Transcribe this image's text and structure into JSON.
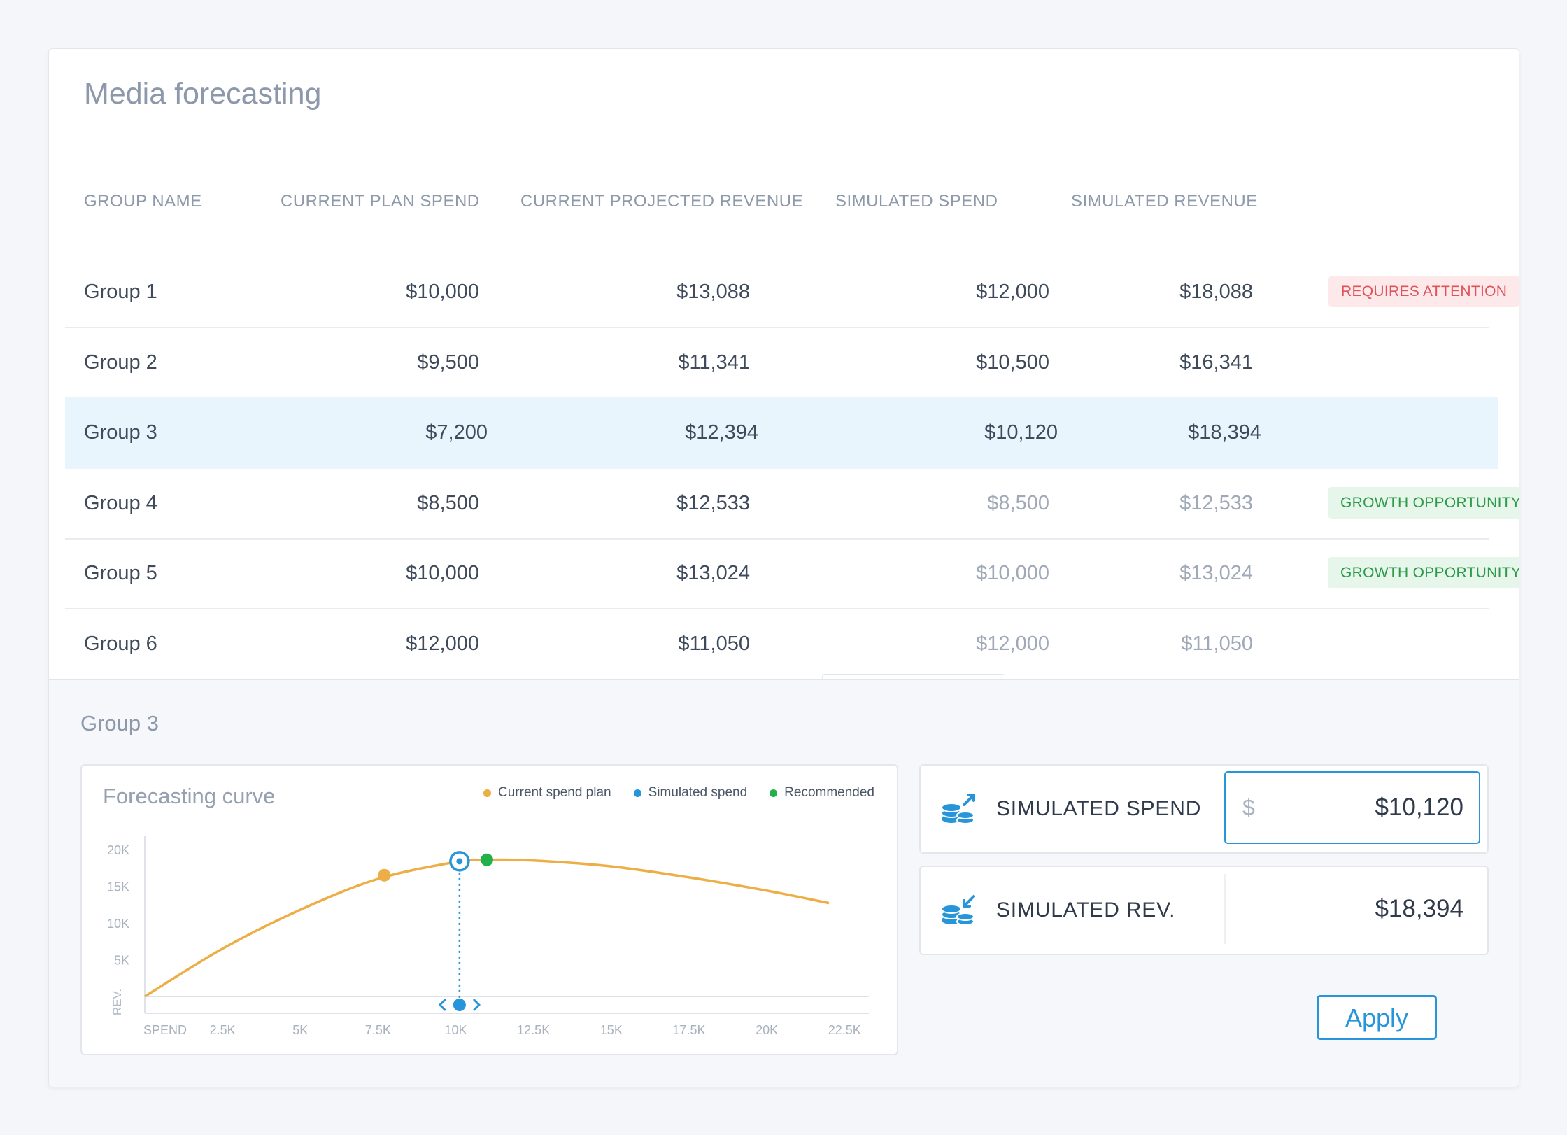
{
  "title": "Media forecasting",
  "table": {
    "headers": [
      "GROUP NAME",
      "CURRENT PLAN SPEND",
      "CURRENT PROJECTED REVENUE",
      "SIMULATED SPEND",
      "SIMULATED REVENUE"
    ],
    "rows": [
      {
        "name": "Group 1",
        "plan_spend": "$10,000",
        "projected_revenue": "$13,088",
        "sim_spend": "$12,000",
        "sim_revenue": "$18,088",
        "badge": "REQUIRES ATTENTION",
        "badge_type": "attention",
        "muted": false,
        "selected": false
      },
      {
        "name": "Group 2",
        "plan_spend": "$9,500",
        "projected_revenue": "$11,341",
        "sim_spend": "$10,500",
        "sim_revenue": "$16,341",
        "badge": "",
        "badge_type": "",
        "muted": false,
        "selected": false
      },
      {
        "name": "Group 3",
        "plan_spend": "$7,200",
        "projected_revenue": "$12,394",
        "sim_spend": "$10,120",
        "sim_revenue": "$18,394",
        "badge": "",
        "badge_type": "",
        "muted": false,
        "selected": true
      },
      {
        "name": "Group 4",
        "plan_spend": "$8,500",
        "projected_revenue": "$12,533",
        "sim_spend": "$8,500",
        "sim_revenue": "$12,533",
        "badge": "GROWTH OPPORTUNITY",
        "badge_type": "growth",
        "muted": true,
        "selected": false
      },
      {
        "name": "Group 5",
        "plan_spend": "$10,000",
        "projected_revenue": "$13,024",
        "sim_spend": "$10,000",
        "sim_revenue": "$13,024",
        "badge": "GROWTH OPPORTUNITY",
        "badge_type": "growth",
        "muted": true,
        "selected": false
      },
      {
        "name": "Group 6",
        "plan_spend": "$12,000",
        "projected_revenue": "$11,050",
        "sim_spend": "$12,000",
        "sim_revenue": "$11,050",
        "badge": "",
        "badge_type": "",
        "muted": true,
        "selected": false
      }
    ]
  },
  "detail": {
    "title": "Group 3",
    "simulated_spend": {
      "label": "SIMULATED SPEND",
      "currency": "$",
      "value": "$10,120",
      "icon": "coins-up-icon"
    },
    "simulated_rev": {
      "label": "SIMULATED REV.",
      "value": "$18,394",
      "icon": "coins-down-icon"
    },
    "apply_label": "Apply"
  },
  "colors": {
    "curve": "#ecae45",
    "current": "#ecae45",
    "simulated": "#2795d9",
    "recommended": "#22b04b",
    "attention_bg": "#fde8ea",
    "attention_fg": "#e0525a",
    "growth_bg": "#e6f6ea",
    "growth_fg": "#2c9a49"
  },
  "chart_data": {
    "type": "line",
    "title": "Forecasting curve",
    "xlabel": "SPEND",
    "ylabel": "REV.",
    "xlim": [
      0,
      22500
    ],
    "ylim": [
      0,
      20000
    ],
    "x_ticks": [
      2500,
      5000,
      7500,
      10000,
      12500,
      15000,
      17500,
      20000,
      22500
    ],
    "x_tick_labels": [
      "2.5K",
      "5K",
      "7.5K",
      "10K",
      "12.5K",
      "15K",
      "17.5K",
      "20K",
      "22.5K"
    ],
    "y_ticks": [
      5000,
      10000,
      15000,
      20000
    ],
    "y_tick_labels": [
      "5K",
      "10K",
      "15K",
      "20K"
    ],
    "legend": [
      "Current spend plan",
      "Simulated spend",
      "Recommended"
    ],
    "legend_position": "top-right",
    "series": [
      {
        "x": [
          0,
          2500,
          5000,
          7500,
          10000,
          11000,
          12500,
          15000,
          17500,
          20000,
          22000
        ],
        "y": [
          0,
          6500,
          11800,
          16000,
          18300,
          18600,
          18500,
          17700,
          16200,
          14400,
          12700
        ]
      }
    ],
    "points": [
      {
        "name": "Current spend plan",
        "x": 7700,
        "y": 16500
      },
      {
        "name": "Simulated spend",
        "x": 10120,
        "y": 18394
      },
      {
        "name": "Recommended",
        "x": 11000,
        "y": 18600
      }
    ]
  }
}
